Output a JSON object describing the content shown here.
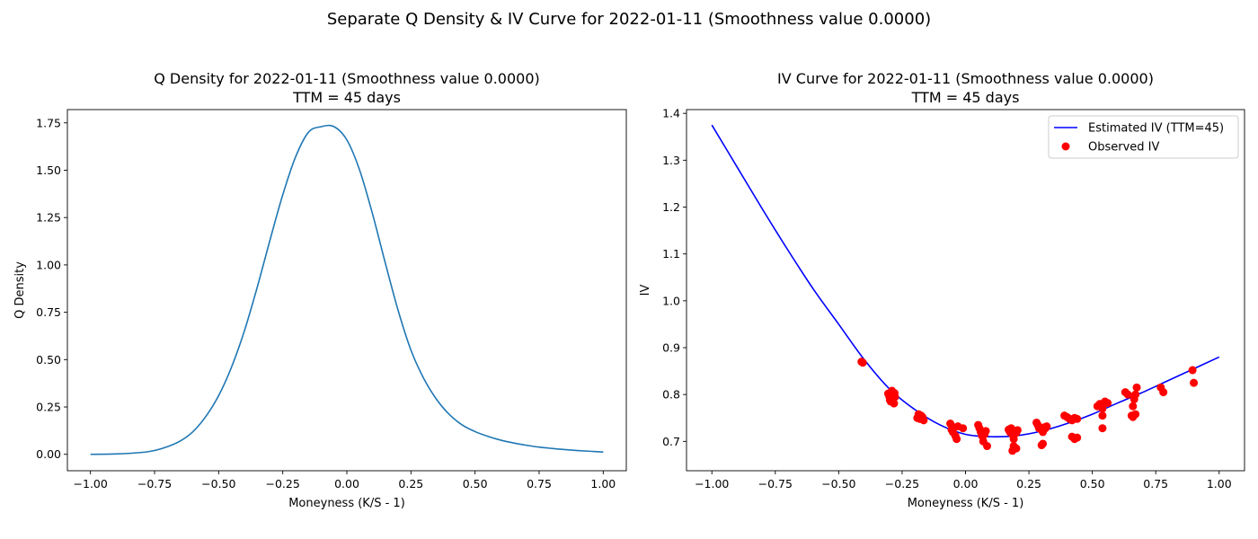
{
  "figure": {
    "suptitle": "Separate Q Density & IV Curve for 2022-01-11 (Smoothness value 0.0000)"
  },
  "chart_data": [
    {
      "type": "line",
      "title_line1": "Q Density for 2022-01-11 (Smoothness value 0.0000)",
      "title_line2": "TTM = 45 days",
      "xlabel": "Moneyness (K/S - 1)",
      "ylabel": "Q Density",
      "xlim": [
        -1.09,
        1.09
      ],
      "ylim": [
        -0.0866,
        1.82
      ],
      "xticks": [
        -1.0,
        -0.75,
        -0.5,
        -0.25,
        0.0,
        0.25,
        0.5,
        0.75,
        1.0
      ],
      "xtick_labels": [
        "−1.00",
        "−0.75",
        "−0.50",
        "−0.25",
        "0.00",
        "0.25",
        "0.50",
        "0.75",
        "1.00"
      ],
      "yticks": [
        0.0,
        0.25,
        0.5,
        0.75,
        1.0,
        1.25,
        1.5,
        1.75
      ],
      "ytick_labels": [
        "0.00",
        "0.25",
        "0.50",
        "0.75",
        "1.00",
        "1.25",
        "1.50",
        "1.75"
      ],
      "grid": false,
      "series": [
        {
          "color": "#1f77b4",
          "x": [
            -1.0,
            -0.9,
            -0.8,
            -0.75,
            -0.7,
            -0.65,
            -0.6,
            -0.55,
            -0.5,
            -0.45,
            -0.4,
            -0.35,
            -0.3,
            -0.25,
            -0.2,
            -0.15,
            -0.1,
            -0.05,
            0.0,
            0.05,
            0.1,
            0.15,
            0.2,
            0.25,
            0.3,
            0.35,
            0.4,
            0.45,
            0.5,
            0.55,
            0.6,
            0.65,
            0.7,
            0.75,
            0.8,
            0.85,
            0.9,
            0.95,
            1.0
          ],
          "y": [
            0.0,
            0.002,
            0.01,
            0.02,
            0.04,
            0.07,
            0.12,
            0.2,
            0.31,
            0.46,
            0.65,
            0.88,
            1.13,
            1.37,
            1.57,
            1.7,
            1.73,
            1.73,
            1.66,
            1.5,
            1.27,
            1.01,
            0.76,
            0.55,
            0.4,
            0.29,
            0.21,
            0.155,
            0.12,
            0.095,
            0.075,
            0.06,
            0.048,
            0.038,
            0.031,
            0.025,
            0.02,
            0.016,
            0.012
          ]
        }
      ]
    },
    {
      "type": "line",
      "title_line1": "IV Curve for 2022-01-11 (Smoothness value 0.0000)",
      "title_line2": "TTM = 45 days",
      "xlabel": "Moneyness (K/S - 1)",
      "ylabel": "IV",
      "xlim": [
        -1.1,
        1.1
      ],
      "ylim": [
        0.6374,
        1.408
      ],
      "xticks": [
        -1.0,
        -0.75,
        -0.5,
        -0.25,
        0.0,
        0.25,
        0.5,
        0.75,
        1.0
      ],
      "xtick_labels": [
        "−1.00",
        "−0.75",
        "−0.50",
        "−0.25",
        "0.00",
        "0.25",
        "0.50",
        "0.75",
        "1.00"
      ],
      "yticks": [
        0.7,
        0.8,
        0.9,
        1.0,
        1.1,
        1.2,
        1.3,
        1.4
      ],
      "ytick_labels": [
        "0.7",
        "0.8",
        "0.9",
        "1.0",
        "1.1",
        "1.2",
        "1.3",
        "1.4"
      ],
      "grid": false,
      "legend_position": "upper right",
      "series": [
        {
          "name": "Estimated IV (TTM=45)",
          "kind": "line",
          "color": "#0000ff",
          "x": [
            -1.0,
            -0.9,
            -0.8,
            -0.7,
            -0.6,
            -0.5,
            -0.4,
            -0.3,
            -0.2,
            -0.1,
            0.0,
            0.1,
            0.2,
            0.3,
            0.4,
            0.5,
            0.6,
            0.7,
            0.8,
            0.9,
            1.0
          ],
          "y": [
            1.375,
            1.285,
            1.195,
            1.108,
            1.025,
            0.95,
            0.875,
            0.812,
            0.768,
            0.735,
            0.715,
            0.71,
            0.712,
            0.722,
            0.738,
            0.758,
            0.782,
            0.805,
            0.83,
            0.855,
            0.88
          ]
        },
        {
          "name": "Observed IV",
          "kind": "scatter",
          "color": "#ff0000",
          "x": [
            -0.41,
            -0.405,
            -0.305,
            -0.3,
            -0.298,
            -0.295,
            -0.29,
            -0.288,
            -0.285,
            -0.282,
            -0.28,
            -0.278,
            -0.19,
            -0.185,
            -0.18,
            -0.175,
            -0.17,
            -0.165,
            -0.06,
            -0.055,
            -0.05,
            -0.045,
            -0.04,
            -0.035,
            -0.03,
            -0.01,
            0.05,
            0.055,
            0.06,
            0.065,
            0.07,
            0.075,
            0.08,
            0.085,
            0.17,
            0.175,
            0.18,
            0.185,
            0.19,
            0.195,
            0.2,
            0.205,
            0.185,
            0.19,
            0.2,
            0.28,
            0.285,
            0.29,
            0.3,
            0.305,
            0.31,
            0.315,
            0.32,
            0.3,
            0.305,
            0.39,
            0.4,
            0.41,
            0.42,
            0.43,
            0.44,
            0.42,
            0.43,
            0.44,
            0.52,
            0.53,
            0.54,
            0.55,
            0.56,
            0.54,
            0.54,
            0.63,
            0.64,
            0.655,
            0.66,
            0.665,
            0.67,
            0.675,
            0.66,
            0.67,
            0.77,
            0.78,
            0.895,
            0.9
          ],
          "y": [
            0.87,
            0.868,
            0.802,
            0.795,
            0.788,
            0.785,
            0.808,
            0.798,
            0.792,
            0.781,
            0.803,
            0.795,
            0.75,
            0.758,
            0.748,
            0.755,
            0.752,
            0.745,
            0.738,
            0.725,
            0.72,
            0.73,
            0.712,
            0.705,
            0.732,
            0.728,
            0.735,
            0.728,
            0.72,
            0.712,
            0.7,
            0.715,
            0.722,
            0.69,
            0.725,
            0.72,
            0.728,
            0.715,
            0.705,
            0.722,
            0.718,
            0.724,
            0.68,
            0.69,
            0.685,
            0.74,
            0.735,
            0.728,
            0.725,
            0.72,
            0.73,
            0.728,
            0.732,
            0.692,
            0.695,
            0.755,
            0.752,
            0.748,
            0.745,
            0.75,
            0.748,
            0.71,
            0.705,
            0.708,
            0.775,
            0.78,
            0.77,
            0.785,
            0.782,
            0.755,
            0.728,
            0.805,
            0.8,
            0.755,
            0.775,
            0.79,
            0.8,
            0.815,
            0.752,
            0.758,
            0.815,
            0.805,
            0.852,
            0.825
          ]
        }
      ]
    }
  ]
}
